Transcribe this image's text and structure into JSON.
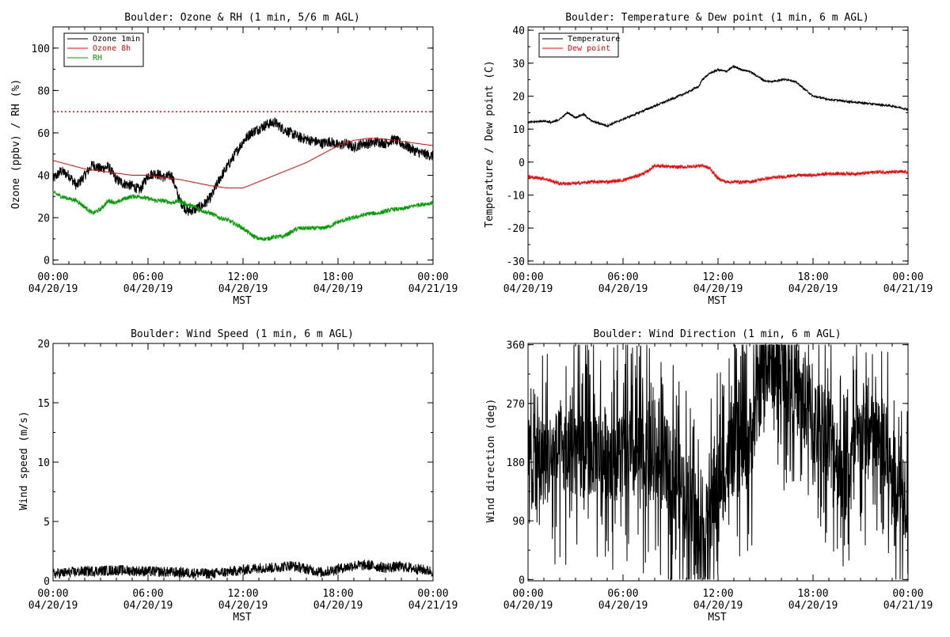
{
  "panels": [
    {
      "id": "ozone-rh",
      "title": "Boulder: Ozone & RH (1 min, 5/6 m AGL)",
      "ylabel": "Ozone (ppbv) / RH (%)",
      "xlabel": "MST",
      "xticks": [
        [
          "00:00",
          "04/20/19"
        ],
        [
          "06:00",
          "04/20/19"
        ],
        [
          "12:00",
          "04/20/19"
        ],
        [
          "18:00",
          "04/20/19"
        ],
        [
          "00:00",
          "04/21/19"
        ]
      ]
    },
    {
      "id": "temp-dew",
      "title": "Boulder: Temperature & Dew point (1 min, 6 m AGL)",
      "ylabel": "Temperature / Dew point (C)",
      "xlabel": "MST",
      "xticks": [
        [
          "00:00",
          "04/20/19"
        ],
        [
          "06:00",
          "04/20/19"
        ],
        [
          "12:00",
          "04/20/19"
        ],
        [
          "18:00",
          "04/20/19"
        ],
        [
          "00:00",
          "04/21/19"
        ]
      ]
    },
    {
      "id": "wind-speed",
      "title": "Boulder: Wind Speed (1 min, 6 m AGL)",
      "ylabel": "Wind speed (m/s)",
      "xlabel": "MST",
      "xticks": [
        [
          "00:00",
          "04/20/19"
        ],
        [
          "06:00",
          "04/20/19"
        ],
        [
          "12:00",
          "04/20/19"
        ],
        [
          "18:00",
          "04/20/19"
        ],
        [
          "00:00",
          "04/21/19"
        ]
      ]
    },
    {
      "id": "wind-dir",
      "title": "Boulder: Wind Direction (1 min, 6 m AGL)",
      "ylabel": "Wind direction (deg)",
      "xlabel": "MST",
      "xticks": [
        [
          "00:00",
          "04/20/19"
        ],
        [
          "06:00",
          "04/20/19"
        ],
        [
          "12:00",
          "04/20/19"
        ],
        [
          "18:00",
          "04/20/19"
        ],
        [
          "00:00",
          "04/21/19"
        ]
      ]
    }
  ],
  "chart_data": [
    {
      "type": "line",
      "title": "Boulder: Ozone & RH (1 min, 5/6 m AGL)",
      "xlabel": "MST",
      "ylabel": "Ozone (ppbv) / RH (%)",
      "x_unit": "hours since 04/20/19 00:00 MST",
      "xlim": [
        0,
        24
      ],
      "ylim": [
        -2,
        110
      ],
      "yticks": [
        0,
        20,
        40,
        60,
        80,
        100
      ],
      "legend": "top-left",
      "reference_line": {
        "y": 70,
        "style": "dotted",
        "color": "#ff0000"
      },
      "series": [
        {
          "name": "Ozone 1min",
          "color": "#000000",
          "noise": 2.5,
          "x": [
            0,
            0.5,
            1,
            1.5,
            2,
            2.5,
            3,
            3.5,
            4,
            4.5,
            5,
            5.5,
            6,
            6.5,
            7,
            7.5,
            8,
            8.5,
            9,
            9.5,
            10,
            10.5,
            11,
            11.5,
            12,
            12.5,
            13,
            13.5,
            14,
            14.5,
            15,
            15.5,
            16,
            16.5,
            17,
            17.5,
            18,
            18.5,
            19,
            19.5,
            20,
            20.5,
            21,
            21.5,
            22,
            22.5,
            23,
            23.5,
            24
          ],
          "y": [
            38,
            42,
            40,
            35,
            40,
            45,
            43,
            44,
            38,
            36,
            35,
            33,
            40,
            41,
            39,
            40,
            28,
            23,
            24,
            26,
            30,
            38,
            44,
            50,
            56,
            60,
            62,
            64,
            65,
            62,
            60,
            58,
            57,
            56,
            55,
            56,
            54,
            55,
            53,
            55,
            55,
            56,
            55,
            57,
            55,
            53,
            51,
            50,
            49
          ]
        },
        {
          "name": "Ozone 8h",
          "color": "#ff0000",
          "noise": 0,
          "x": [
            0,
            1,
            2,
            3,
            4,
            5,
            6,
            7,
            8,
            9,
            10,
            11,
            12,
            13,
            14,
            15,
            16,
            17,
            18,
            19,
            20,
            21,
            22,
            23,
            24
          ],
          "y": [
            47,
            45,
            43,
            42,
            41,
            40,
            40,
            39,
            38,
            36.5,
            35,
            34,
            34,
            37,
            40,
            43,
            46,
            50,
            54,
            56.5,
            57.5,
            57,
            56,
            55,
            54
          ]
        },
        {
          "name": "RH",
          "color": "#00a000",
          "noise": 1,
          "x": [
            0,
            0.5,
            1,
            1.5,
            2,
            2.5,
            3,
            3.5,
            4,
            4.5,
            5,
            5.5,
            6,
            6.5,
            7,
            7.5,
            8,
            8.5,
            9,
            9.5,
            10,
            10.5,
            11,
            11.5,
            12,
            12.5,
            13,
            13.5,
            14,
            14.5,
            15,
            15.5,
            16,
            16.5,
            17,
            17.5,
            18,
            18.5,
            19,
            19.5,
            20,
            20.5,
            21,
            21.5,
            22,
            22.5,
            23,
            23.5,
            24
          ],
          "y": [
            32,
            30,
            29,
            28,
            25,
            22,
            24,
            28,
            27,
            29,
            30,
            30,
            29,
            28,
            28,
            27,
            28,
            26,
            25,
            23,
            22,
            20,
            19,
            17,
            15,
            12,
            10,
            10,
            11,
            11,
            13,
            15,
            15,
            15,
            15,
            16,
            18,
            19,
            20,
            21,
            22,
            22,
            23,
            24,
            24,
            25,
            26,
            26.5,
            27
          ]
        }
      ]
    },
    {
      "type": "line",
      "title": "Boulder: Temperature & Dew point (1 min, 6 m AGL)",
      "xlabel": "MST",
      "ylabel": "Temperature / Dew point (C)",
      "x_unit": "hours since 04/20/19 00:00 MST",
      "xlim": [
        0,
        24
      ],
      "ylim": [
        -31,
        41
      ],
      "yticks": [
        -30,
        -20,
        -10,
        0,
        10,
        20,
        30,
        40
      ],
      "legend": "top-left",
      "series": [
        {
          "name": "Temperature",
          "color": "#000000",
          "noise": 0.3,
          "x": [
            0,
            1,
            1.5,
            2,
            2.5,
            3,
            3.5,
            4,
            5,
            6,
            7,
            8,
            9,
            10,
            10.8,
            11,
            11.5,
            12,
            12.5,
            13,
            13.5,
            14,
            14.5,
            15,
            15.5,
            16,
            16.5,
            17,
            17.5,
            18,
            19,
            20,
            21,
            22,
            23,
            24
          ],
          "y": [
            12,
            12.5,
            12,
            13,
            15,
            13.5,
            14.5,
            12.5,
            11,
            13,
            15,
            17,
            19,
            21,
            23,
            25,
            27,
            28,
            27.5,
            29,
            28,
            27.5,
            26,
            24.5,
            24.5,
            25,
            25,
            24,
            22,
            20,
            19,
            18.5,
            18,
            17.5,
            17,
            16
          ]
        },
        {
          "name": "Dew point",
          "color": "#ff0000",
          "noise": 0.5,
          "x": [
            0,
            1,
            2,
            3,
            4,
            5,
            6,
            7,
            7.5,
            8,
            9,
            10,
            11,
            11.5,
            12,
            12.5,
            13,
            14,
            15,
            16,
            17,
            18,
            19,
            20,
            21,
            22,
            23,
            24
          ],
          "y": [
            -4.5,
            -5,
            -6.5,
            -6.5,
            -6,
            -6,
            -5.5,
            -4,
            -3,
            -1,
            -1.5,
            -1.5,
            -1,
            -2,
            -5,
            -6,
            -6,
            -6,
            -5,
            -4.5,
            -4,
            -4,
            -3.5,
            -3.5,
            -3.5,
            -3,
            -3,
            -3
          ]
        }
      ]
    },
    {
      "type": "line",
      "title": "Boulder: Wind Speed (1 min, 6 m AGL)",
      "xlabel": "MST",
      "ylabel": "Wind speed (m/s)",
      "x_unit": "hours since 04/20/19 00:00 MST",
      "xlim": [
        0,
        24
      ],
      "ylim": [
        0,
        20
      ],
      "yticks": [
        0,
        5,
        10,
        15,
        20
      ],
      "series": [
        {
          "name": "",
          "color": "#000000",
          "noise": 0.45,
          "floor": 0,
          "x": [
            0,
            2,
            4,
            6,
            8,
            10,
            12,
            13,
            14,
            15,
            16,
            17,
            18,
            19,
            20,
            21,
            22,
            23,
            24
          ],
          "y": [
            0.6,
            0.8,
            0.9,
            0.8,
            0.7,
            0.6,
            0.9,
            1.1,
            1.1,
            1.3,
            1.0,
            0.7,
            1.0,
            1.3,
            1.3,
            1.1,
            1.2,
            1.0,
            0.8
          ]
        }
      ]
    },
    {
      "type": "line",
      "title": "Boulder: Wind Direction (1 min, 6 m AGL)",
      "xlabel": "MST",
      "ylabel": "Wind direction (deg)",
      "x_unit": "hours since 04/20/19 00:00 MST",
      "xlim": [
        0,
        24
      ],
      "ylim": [
        -2,
        362
      ],
      "yticks": [
        0,
        90,
        180,
        270,
        360
      ],
      "series": [
        {
          "name": "",
          "color": "#000000",
          "noise": 120,
          "floor": 0,
          "ceil": 360,
          "x": [
            0,
            2,
            4,
            6,
            8,
            9,
            10,
            11,
            12,
            13,
            14,
            15,
            16,
            17,
            18,
            19,
            20,
            21,
            22,
            23,
            24
          ],
          "y": [
            180,
            190,
            200,
            190,
            180,
            170,
            130,
            50,
            150,
            200,
            210,
            340,
            320,
            290,
            240,
            230,
            150,
            220,
            210,
            160,
            130
          ]
        }
      ]
    }
  ]
}
